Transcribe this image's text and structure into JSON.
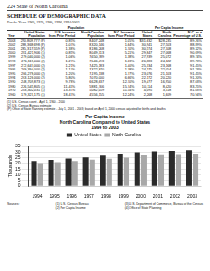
{
  "header": "224   State of North Carolina",
  "title": "SCHEDULE OF DEMOGRAPHIC DATA",
  "subtitle": "For the Years 1960, 1970, 1980, 1990, 1994-2003",
  "table": {
    "groups": [
      {
        "label": "Population",
        "span": 4
      },
      {
        "label": "Per Capita Income",
        "span": 3
      }
    ],
    "columns": [
      "Year",
      "United States Population",
      "U.S. Increase from Prior Period",
      "North Carolina Population",
      "N.C. Increase from Prior Period",
      "United States",
      "North Carolina",
      "N.C. as a Percentage of U.S."
    ],
    "rows": [
      [
        "2003",
        "290,809,777 (P)",
        "0.85%",
        "8,407,248",
        "1.05%",
        "$31,632",
        "$28,235",
        "89.26%"
      ],
      [
        "2002",
        "288,368,698 (P)",
        "1.07%",
        "8,320,146",
        "1.64%",
        "30,941",
        "27,503",
        "88.89%"
      ],
      [
        "2001",
        "285,317,559 (P)",
        "1.38%",
        "8,186,268",
        "1.70%",
        "30,574",
        "27,308",
        "89.32%"
      ],
      [
        "2000",
        "281,421,906 (1)",
        "0.85%",
        "8,049,313",
        "5.21%",
        "29,847",
        "27,068",
        "90.69%"
      ],
      [
        "1999",
        "279,040,000 (2)",
        "1.06%",
        "7,650,789",
        "1.38%",
        "27,939",
        "25,072",
        "89.74%"
      ],
      [
        "1998",
        "276,115,000 (2)",
        "1.27%",
        "7,546,493",
        "1.63%",
        "26,883",
        "24,122",
        "89.73%"
      ],
      [
        "1997",
        "272,647,000 (2)",
        "1.21%",
        "7,425,183",
        "1.40%",
        "25,334",
        "23,168",
        "91.45%"
      ],
      [
        "1996",
        "269,394,000 (2)",
        "1.17%",
        "7,322,870",
        "1.78%",
        "24,175",
        "22,054",
        "91.23%"
      ],
      [
        "1995",
        "266,278,000 (2)",
        "1.20%",
        "7,195,138",
        "1.77%",
        "23,076",
        "21,103",
        "91.45%"
      ],
      [
        "1994",
        "263,126,000 (2)",
        "5.80%",
        "7,070,000",
        "6.66%",
        "22,172",
        "20,220",
        "91.20%"
      ],
      [
        "1990",
        "248,709,873 (1)",
        "9.78%",
        "6,628,637",
        "12.70%",
        "19,477",
        "16,950",
        "87.03%"
      ],
      [
        "1980",
        "226,545,805 (1)",
        "11.43%",
        "5,881,766",
        "15.74%",
        "10,114",
        "8,420",
        "83.25%"
      ],
      [
        "1970",
        "203,302,031 (1)",
        "13.37%",
        "5,082,059",
        "11.54%",
        "4,095",
        "3,318",
        "81.03%"
      ],
      [
        "1960",
        "179,323,175 (1)",
        "18.47%",
        "4,556,155",
        "12.24%",
        "2,268",
        "1,609",
        "70.94%"
      ]
    ]
  },
  "notes": [
    "(1) U.S. Census count - April 1, 1960 - 2000",
    "(2) U.S. Census Bureau estimate",
    "(P) Office of State Planning estimate - July 1, 2001 - 2003; based on April 1, 2000 census adjusted for births and deaths"
  ],
  "chart_title": "Per Capita Income",
  "chart_subtitle": "North Carolina Compared to United States",
  "chart_years": "1994 to 2003",
  "chart_data": {
    "type": "bar",
    "y_label": "Thousands",
    "categories": [
      "1994",
      "1995",
      "1996",
      "1997",
      "1998",
      "1999",
      "2000",
      "2001",
      "2002",
      "2003"
    ],
    "series": [
      {
        "name": "United States",
        "color": "#2b2b2b",
        "values": [
          22.172,
          23.076,
          24.175,
          25.334,
          26.883,
          27.939,
          29.847,
          30.574,
          30.941,
          31.632
        ]
      },
      {
        "name": "North Carolina",
        "color": "#a8a8a8",
        "values": [
          20.22,
          21.103,
          22.054,
          23.168,
          24.122,
          25.072,
          27.068,
          27.308,
          27.503,
          28.235
        ]
      }
    ],
    "ylim": [
      0,
      35
    ],
    "yticks": [
      0,
      5,
      10,
      15,
      20,
      25,
      30,
      35
    ],
    "grid": true,
    "legend": "top"
  },
  "sources": [
    [
      "Sources:",
      "(1) U.S. Census Bureau",
      "(3) U.S. Department of Commerce, Bureau of the Census"
    ],
    [
      "",
      "(2) Per Capita Income",
      "(4) Office of State Planning"
    ]
  ]
}
